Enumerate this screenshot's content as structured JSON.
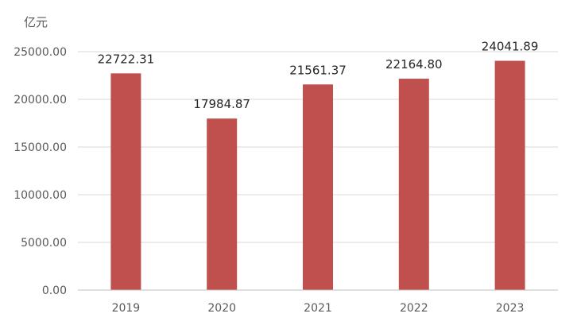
{
  "chart_data": {
    "type": "bar",
    "title": "",
    "xlabel": "",
    "ylabel": "亿元",
    "categories": [
      "2019",
      "2020",
      "2021",
      "2022",
      "2023"
    ],
    "values": [
      22722.31,
      17984.87,
      21561.37,
      22164.8,
      24041.89
    ],
    "data_labels": [
      "22722.31",
      "17984.87",
      "21561.37",
      "22164.80",
      "24041.89"
    ],
    "ylim": [
      0,
      25000
    ],
    "yticks": [
      0,
      5000,
      10000,
      15000,
      20000,
      25000
    ],
    "ytick_labels": [
      "0.00",
      "5000.00",
      "10000.00",
      "15000.00",
      "20000.00",
      "25000.00"
    ],
    "grid": true,
    "legend": "none",
    "bar_color": "#c0504d"
  }
}
